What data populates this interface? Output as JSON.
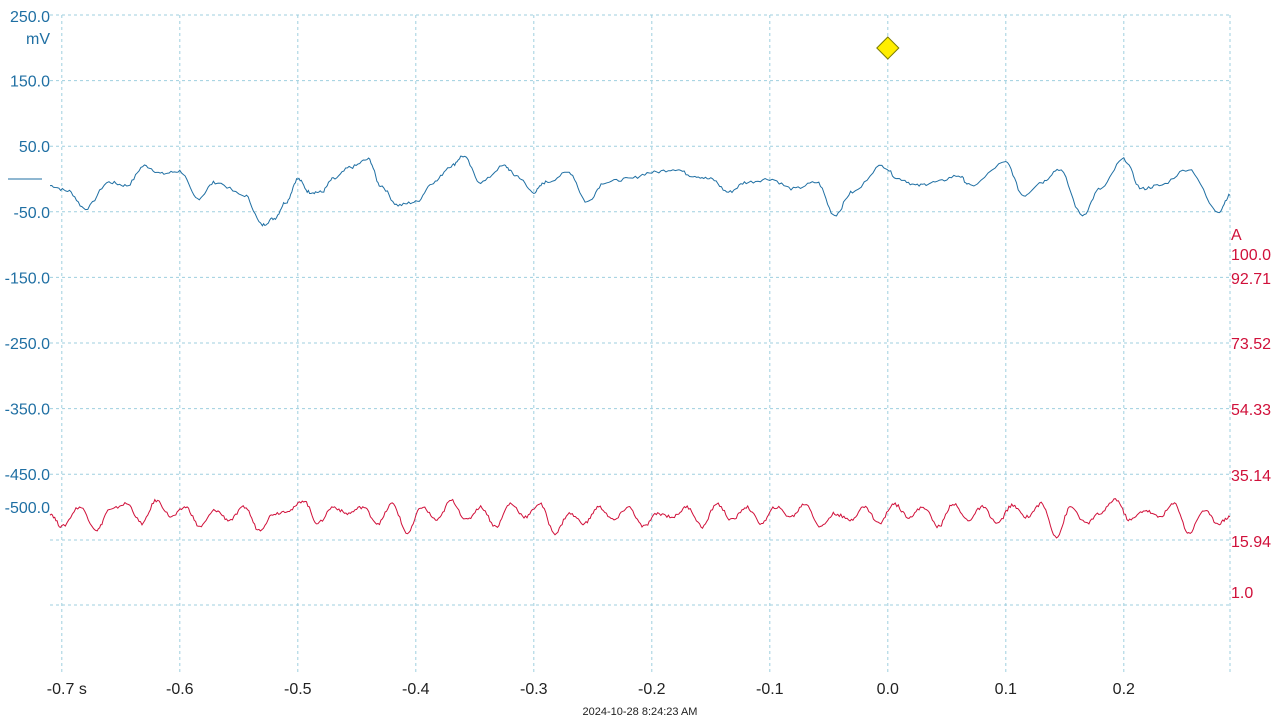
{
  "timestamp": "2024-10-28 8:24:23 AM",
  "colors": {
    "ch1": "#1f6fa3",
    "ch2": "#d0103a",
    "grid": "#9fcfdf",
    "trigger": "#ffee00"
  },
  "icons": {
    "trigger": "trigger-diamond-icon"
  },
  "chart_data": {
    "type": "line",
    "title": "",
    "grid": true,
    "x_axis": {
      "label": "",
      "unit": "s",
      "range": [
        -0.71,
        0.29
      ],
      "ticks": [
        -0.7,
        -0.6,
        -0.5,
        -0.4,
        -0.3,
        -0.2,
        -0.1,
        0.0,
        0.1,
        0.2
      ],
      "tick_labels": [
        "-0.7 s",
        "-0.6",
        "-0.5",
        "-0.4",
        "-0.3",
        "-0.2",
        "-0.1",
        "0.0",
        "0.1",
        "0.2"
      ]
    },
    "left_axis": {
      "unit": "mV",
      "range": [
        -800,
        250
      ],
      "ticks": [
        250,
        150,
        50,
        -50,
        -150,
        -250,
        -350,
        -450,
        -500
      ],
      "tick_labels": [
        "250.0",
        "150.0",
        "50.0",
        "-50.0",
        "-150.0",
        "-250.0",
        "-350.0",
        "-450.0",
        "-500.0"
      ]
    },
    "right_axis": {
      "unit": "A",
      "top_label": "100.0",
      "ticks": [
        92.71,
        73.52,
        54.33,
        35.14,
        15.94,
        1.0
      ],
      "tick_labels": [
        "92.71",
        "73.52",
        "54.33",
        "35.14",
        "15.94",
        "1.0"
      ]
    },
    "trigger": {
      "x": 0.0,
      "y": 200
    },
    "series": [
      {
        "axis": "left",
        "x": [
          -0.71,
          -0.695,
          -0.68,
          -0.66,
          -0.645,
          -0.63,
          -0.615,
          -0.6,
          -0.585,
          -0.57,
          -0.545,
          -0.53,
          -0.52,
          -0.51,
          -0.5,
          -0.49,
          -0.48,
          -0.47,
          -0.455,
          -0.44,
          -0.43,
          -0.415,
          -0.4,
          -0.385,
          -0.37,
          -0.36,
          -0.345,
          -0.325,
          -0.315,
          -0.3,
          -0.29,
          -0.27,
          -0.255,
          -0.24,
          -0.22,
          -0.2,
          -0.18,
          -0.165,
          -0.15,
          -0.135,
          -0.12,
          -0.1,
          -0.08,
          -0.06,
          -0.045,
          -0.03,
          -0.005,
          0.01,
          0.025,
          0.04,
          0.06,
          0.07,
          0.1,
          0.115,
          0.13,
          0.145,
          0.165,
          0.18,
          0.2,
          0.215,
          0.23,
          0.255,
          0.28,
          0.29
        ],
        "values": [
          -10,
          -18,
          -45,
          -5,
          -10,
          20,
          8,
          12,
          -30,
          -5,
          -25,
          -70,
          -60,
          -35,
          0,
          -20,
          -20,
          0,
          18,
          30,
          -10,
          -40,
          -35,
          -5,
          20,
          35,
          -5,
          20,
          5,
          -20,
          -5,
          10,
          -35,
          -5,
          0,
          10,
          15,
          5,
          0,
          -20,
          -5,
          0,
          -15,
          -5,
          -55,
          -20,
          20,
          0,
          -10,
          -5,
          5,
          -10,
          25,
          -25,
          -5,
          15,
          -55,
          -15,
          30,
          -15,
          -10,
          15,
          -50,
          -25
        ]
      },
      {
        "axis": "left",
        "x": [
          -0.71,
          -0.7,
          -0.685,
          -0.67,
          -0.66,
          -0.645,
          -0.632,
          -0.62,
          -0.607,
          -0.595,
          -0.583,
          -0.57,
          -0.558,
          -0.545,
          -0.533,
          -0.52,
          -0.507,
          -0.495,
          -0.483,
          -0.47,
          -0.458,
          -0.445,
          -0.432,
          -0.42,
          -0.407,
          -0.395,
          -0.382,
          -0.37,
          -0.357,
          -0.345,
          -0.332,
          -0.32,
          -0.307,
          -0.295,
          -0.282,
          -0.27,
          -0.257,
          -0.245,
          -0.232,
          -0.22,
          -0.207,
          -0.195,
          -0.182,
          -0.17,
          -0.157,
          -0.145,
          -0.132,
          -0.12,
          -0.107,
          -0.095,
          -0.082,
          -0.07,
          -0.057,
          -0.045,
          -0.032,
          -0.02,
          -0.007,
          0.005,
          0.018,
          0.03,
          0.043,
          0.055,
          0.068,
          0.08,
          0.093,
          0.105,
          0.118,
          0.13,
          0.143,
          0.155,
          0.168,
          0.18,
          0.193,
          0.205,
          0.218,
          0.23,
          0.243,
          0.255,
          0.268,
          0.28,
          0.29
        ],
        "values": [
          -510,
          -530,
          -500,
          -535,
          -505,
          -495,
          -525,
          -490,
          -515,
          -500,
          -530,
          -505,
          -520,
          -500,
          -535,
          -510,
          -505,
          -490,
          -525,
          -500,
          -510,
          -500,
          -525,
          -495,
          -540,
          -500,
          -520,
          -490,
          -520,
          -500,
          -530,
          -495,
          -515,
          -495,
          -540,
          -510,
          -525,
          -500,
          -520,
          -500,
          -530,
          -510,
          -515,
          -500,
          -530,
          -495,
          -520,
          -500,
          -525,
          -500,
          -515,
          -495,
          -530,
          -510,
          -520,
          -500,
          -525,
          -495,
          -515,
          -500,
          -530,
          -495,
          -520,
          -500,
          -525,
          -498,
          -515,
          -495,
          -545,
          -500,
          -525,
          -510,
          -488,
          -520,
          -505,
          -515,
          -495,
          -540,
          -505,
          -525,
          -515
        ]
      }
    ]
  }
}
